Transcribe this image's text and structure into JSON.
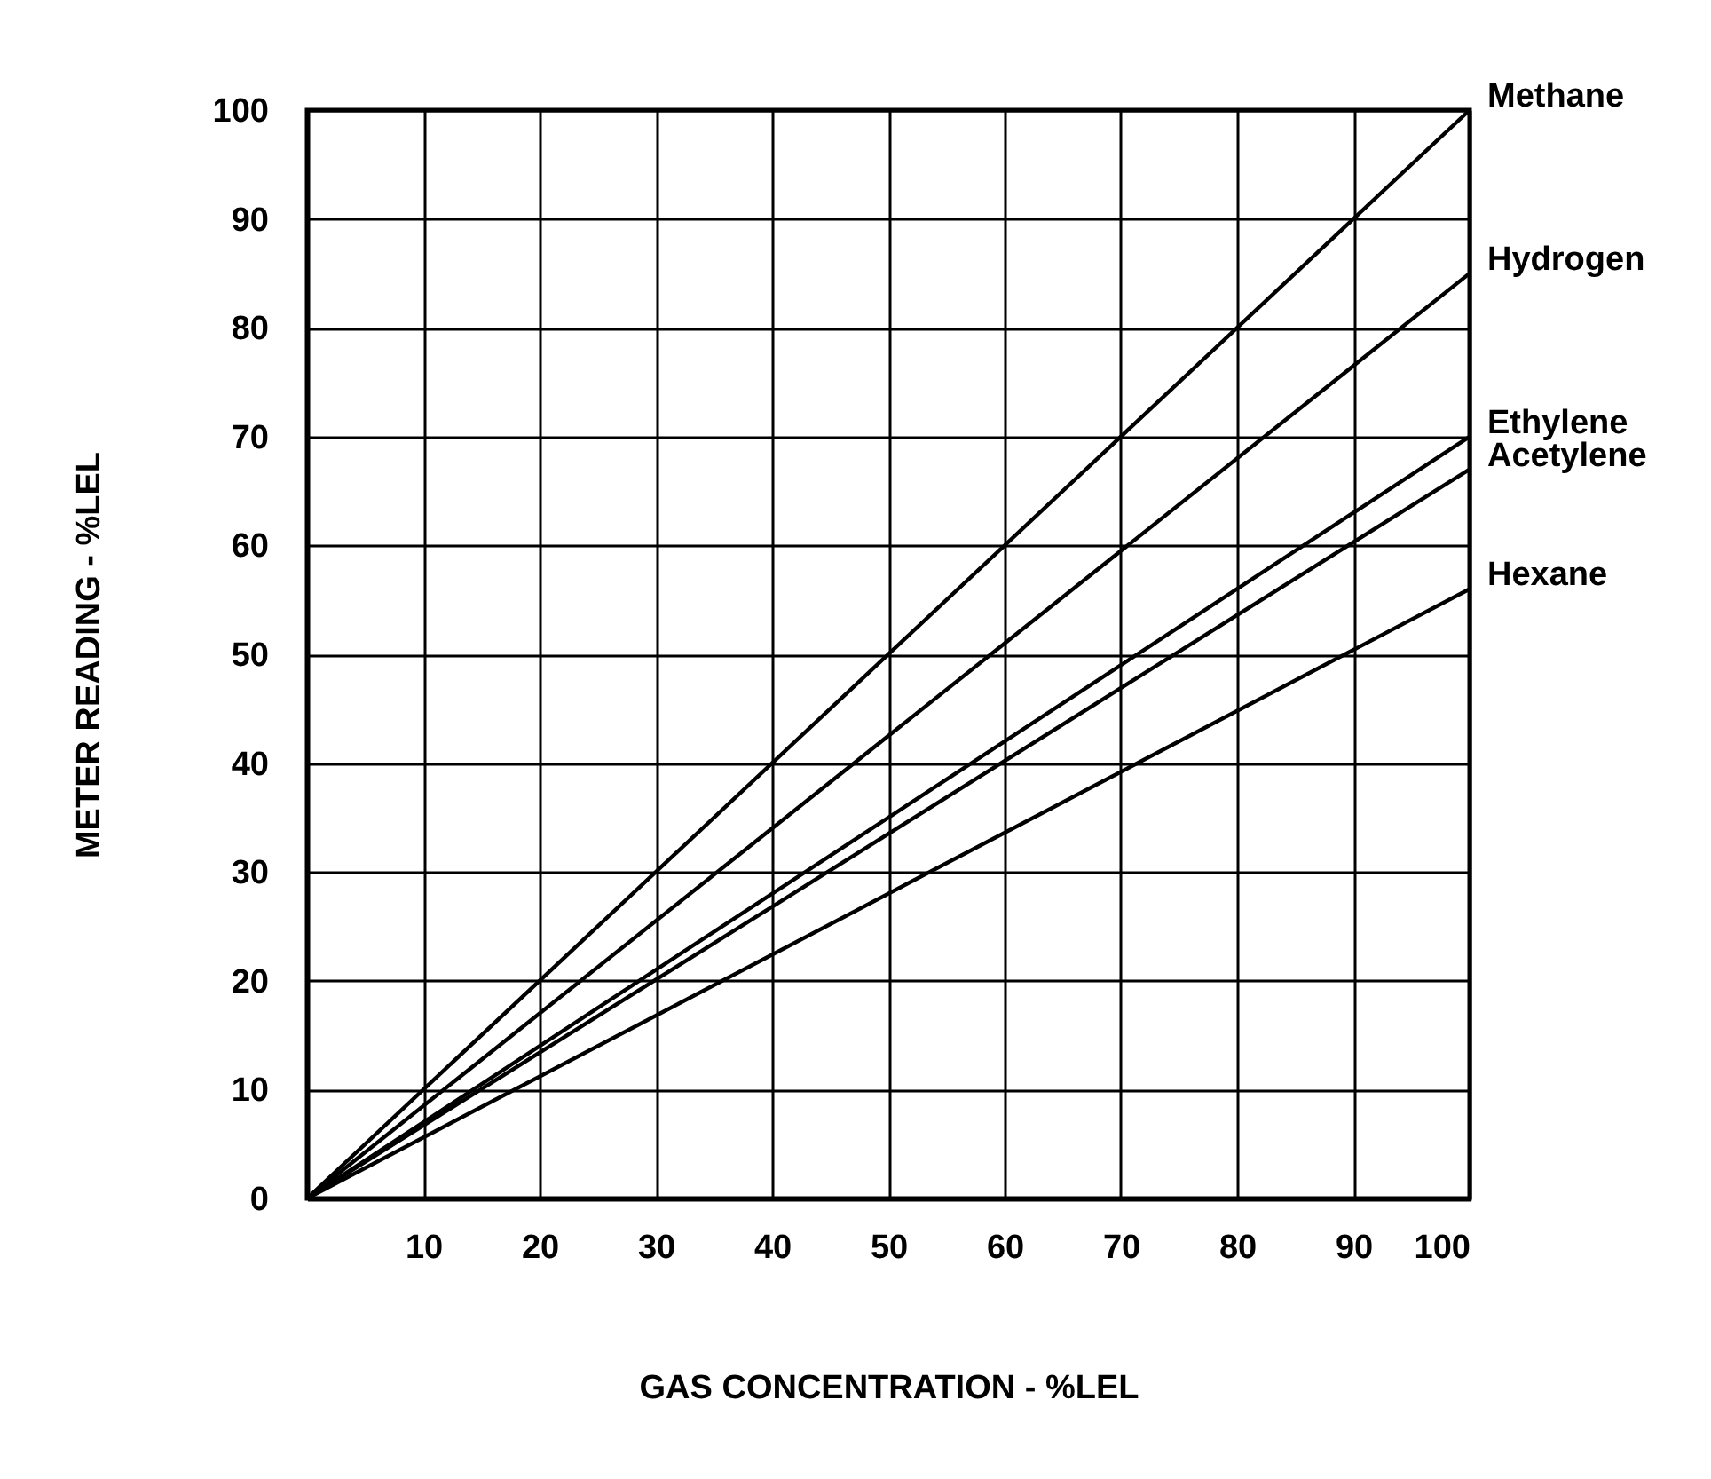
{
  "chart_data": {
    "type": "line",
    "xlabel": "GAS CONCENTRATION - %LEL",
    "ylabel": "METER READING - %LEL",
    "x": [
      0,
      100
    ],
    "series": [
      {
        "name": "Methane",
        "color": "#000000",
        "values": [
          0,
          100
        ]
      },
      {
        "name": "Hydrogen",
        "color": "#000000",
        "values": [
          0,
          85
        ]
      },
      {
        "name": "Ethylene",
        "color": "#000000",
        "values": [
          0,
          70
        ]
      },
      {
        "name": "Acetylene",
        "color": "#000000",
        "values": [
          0,
          67
        ]
      },
      {
        "name": "Hexane",
        "color": "#000000",
        "values": [
          0,
          56
        ]
      }
    ],
    "xlim": [
      0,
      100
    ],
    "ylim": [
      0,
      100
    ],
    "xticks": [
      10,
      20,
      30,
      40,
      50,
      60,
      70,
      80,
      90,
      100
    ],
    "yticks": [
      0,
      10,
      20,
      30,
      40,
      50,
      60,
      70,
      80,
      90,
      100
    ],
    "grid": true,
    "legend": false,
    "marker": "none",
    "line_style": "solid"
  }
}
